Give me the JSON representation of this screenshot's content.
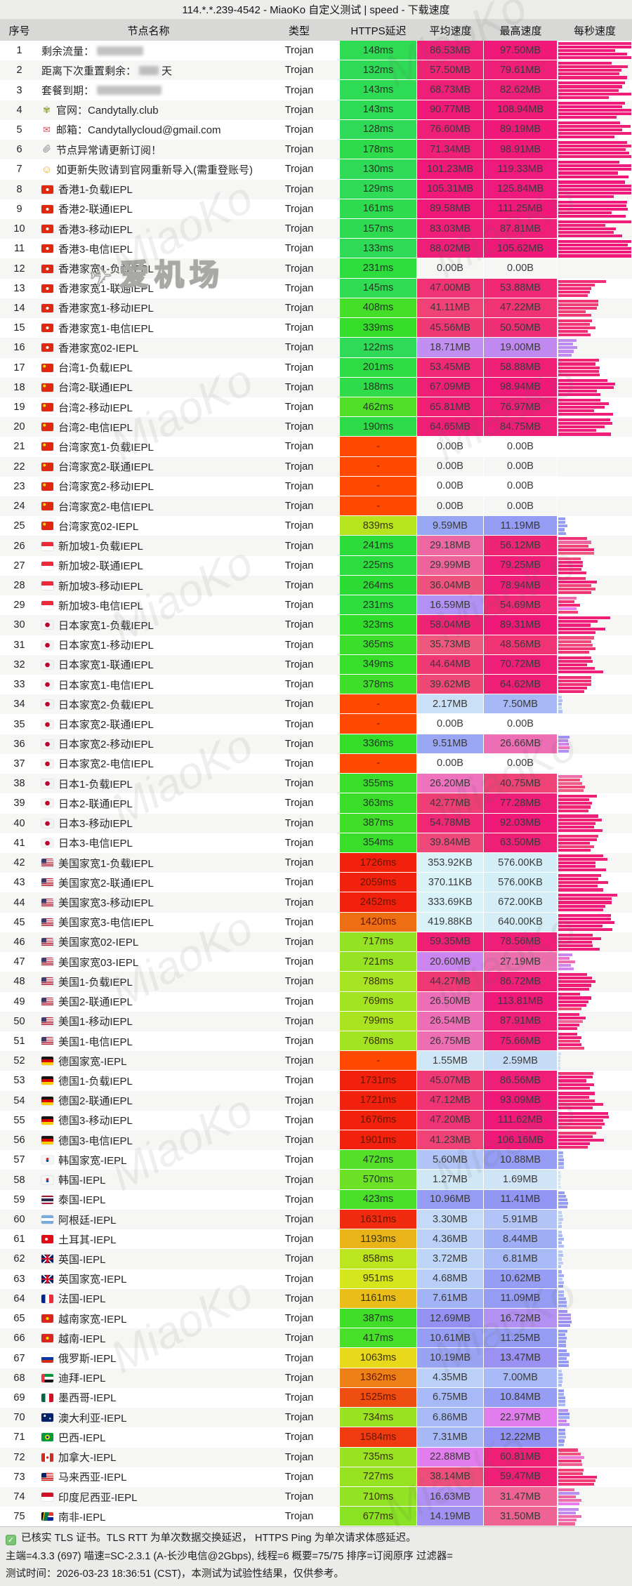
{
  "title": "114.*.*.239-4542 - MiaoKo 自定义测试 | speed - 下载速度",
  "columns": [
    "序号",
    "节点名称",
    "类型",
    "HTTPS延迟",
    "平均速度",
    "最高速度",
    "每秒速度"
  ],
  "icons": {
    "site": "✾",
    "mail": "✉",
    "smiley": "☺"
  },
  "watermark": {
    "repeat_text": "MiaoKo",
    "badge_text": "爱机场"
  },
  "footer": {
    "line1": "已核实 TLS 证书。TLS RTT 为单次数据交换延迟， HTTPS Ping 为单次请求体感延迟。",
    "line2": "主端=4.3.3 (697) 喵速=SC-2.3.1 (A-长沙电信@2Gbps), 线程=6 概要=75/75 排序=订阅原序 过滤器=",
    "line3": "测试时间：2026-03-23 18:36:51 (CST)，本测试为试验性结果，仅供参考。"
  },
  "rows": [
    {
      "n": 1,
      "t": "剩余流量：",
      "m": 66,
      "ty": "Trojan",
      "l": "148ms",
      "ms": 148,
      "a": "86.53MB",
      "av": 86.53,
      "x": "97.50MB",
      "xv": 97.5,
      "s": 0.93
    },
    {
      "n": 2,
      "t": "距离下次重置剩余：",
      "m": 28,
      "sfx": " 天",
      "ty": "Trojan",
      "l": "132ms",
      "ms": 132,
      "a": "57.50MB",
      "av": 57.5,
      "x": "79.61MB",
      "xv": 79.61,
      "s": 0.88
    },
    {
      "n": 3,
      "t": "套餐到期：",
      "m": 92,
      "ty": "Trojan",
      "l": "143ms",
      "ms": 143,
      "a": "68.73MB",
      "av": 68.73,
      "x": "82.62MB",
      "xv": 82.62,
      "s": 0.85
    },
    {
      "n": 4,
      "i": "site",
      "t": "官网：Candytally.club",
      "ty": "Trojan",
      "l": "143ms",
      "ms": 143,
      "a": "90.77MB",
      "av": 90.77,
      "x": "108.94MB",
      "xv": 108.94,
      "s": 0.93
    },
    {
      "n": 5,
      "i": "mail",
      "t": "邮箱：Candytallycloud@gmail.com",
      "ty": "Trojan",
      "l": "128ms",
      "ms": 128,
      "a": "76.60MB",
      "av": 76.6,
      "x": "89.19MB",
      "xv": 89.19,
      "s": 0.82
    },
    {
      "n": 6,
      "i": "clip",
      "t": "节点异常请更新订阅！",
      "ty": "Trojan",
      "l": "178ms",
      "ms": 178,
      "a": "71.34MB",
      "av": 71.34,
      "x": "98.91MB",
      "xv": 98.91,
      "s": 0.85
    },
    {
      "n": 7,
      "i": "smiley",
      "t": "如更新失败请到官网重新导入(需重登账号)",
      "ty": "Trojan",
      "l": "130ms",
      "ms": 130,
      "a": "101.23MB",
      "av": 101.23,
      "x": "119.33MB",
      "xv": 119.33,
      "s": 0.95
    },
    {
      "n": 8,
      "f": "hk",
      "t": "香港1-负载IEPL",
      "ty": "Trojan",
      "l": "129ms",
      "ms": 129,
      "a": "105.31MB",
      "av": 105.31,
      "x": "125.84MB",
      "xv": 125.84,
      "s": 0.95
    },
    {
      "n": 9,
      "f": "hk",
      "t": "香港2-联通IEPL",
      "ty": "Trojan",
      "l": "161ms",
      "ms": 161,
      "a": "89.58MB",
      "av": 89.58,
      "x": "111.25MB",
      "xv": 111.25,
      "s": 0.88
    },
    {
      "n": 10,
      "f": "hk",
      "t": "香港3-移动IEPL",
      "ty": "Trojan",
      "l": "157ms",
      "ms": 157,
      "a": "83.03MB",
      "av": 83.03,
      "x": "87.81MB",
      "xv": 87.81,
      "s": 0.8
    },
    {
      "n": 11,
      "f": "hk",
      "t": "香港3-电信IEPL",
      "ty": "Trojan",
      "l": "133ms",
      "ms": 133,
      "a": "88.02MB",
      "av": 88.02,
      "x": "105.62MB",
      "xv": 105.62,
      "s": 0.87
    },
    {
      "n": 12,
      "f": "hk",
      "t": "香港家宽1-负载IEPL",
      "ty": "Trojan",
      "l": "231ms",
      "ms": 231,
      "a": "0.00B",
      "av": 0,
      "x": "0.00B",
      "xv": 0,
      "s": 0
    },
    {
      "n": 13,
      "f": "hk",
      "t": "香港家宽1-联通IEPL",
      "ty": "Trojan",
      "l": "145ms",
      "ms": 145,
      "a": "47.00MB",
      "av": 47,
      "x": "53.88MB",
      "xv": 53.88,
      "s": 0.5
    },
    {
      "n": 14,
      "f": "hk",
      "t": "香港家宽1-移动IEPL",
      "ty": "Trojan",
      "l": "408ms",
      "ms": 408,
      "a": "41.11MB",
      "av": 41.11,
      "x": "47.22MB",
      "xv": 47.22,
      "s": 0.45
    },
    {
      "n": 15,
      "f": "hk",
      "t": "香港家宽1-电信IEPL",
      "ty": "Trojan",
      "l": "339ms",
      "ms": 339,
      "a": "45.56MB",
      "av": 45.56,
      "x": "50.50MB",
      "xv": 50.5,
      "s": 0.45
    },
    {
      "n": 16,
      "f": "hk",
      "t": "香港家宽02-IEPL",
      "ty": "Trojan",
      "l": "122ms",
      "ms": 122,
      "a": "18.71MB",
      "av": 18.71,
      "x": "19.00MB",
      "xv": 19,
      "s": 0.2
    },
    {
      "n": 17,
      "f": "cn",
      "t": "台湾1-负载IEPL",
      "ty": "Trojan",
      "l": "201ms",
      "ms": 201,
      "a": "53.45MB",
      "av": 53.45,
      "x": "58.88MB",
      "xv": 58.88,
      "s": 0.55
    },
    {
      "n": 18,
      "f": "cn",
      "t": "台湾2-联通IEPL",
      "ty": "Trojan",
      "l": "188ms",
      "ms": 188,
      "a": "67.09MB",
      "av": 67.09,
      "x": "98.94MB",
      "xv": 98.94,
      "s": 0.6
    },
    {
      "n": 19,
      "f": "cn",
      "t": "台湾2-移动IEPL",
      "ty": "Trojan",
      "l": "462ms",
      "ms": 462,
      "a": "65.81MB",
      "av": 65.81,
      "x": "76.97MB",
      "xv": 76.97,
      "s": 0.6
    },
    {
      "n": 20,
      "f": "cn",
      "t": "台湾2-电信IEPL",
      "ty": "Trojan",
      "l": "190ms",
      "ms": 190,
      "a": "64.65MB",
      "av": 64.65,
      "x": "84.75MB",
      "xv": 84.75,
      "s": 0.6
    },
    {
      "n": 21,
      "f": "cn",
      "t": "台湾家宽1-负载IEPL",
      "ty": "Trojan",
      "l": "-",
      "ms": null,
      "a": "0.00B",
      "av": 0,
      "x": "0.00B",
      "xv": 0,
      "s": 0
    },
    {
      "n": 22,
      "f": "cn",
      "t": "台湾家宽2-联通IEPL",
      "ty": "Trojan",
      "l": "-",
      "ms": null,
      "a": "0.00B",
      "av": 0,
      "x": "0.00B",
      "xv": 0,
      "s": 0
    },
    {
      "n": 23,
      "f": "cn",
      "t": "台湾家宽2-移动IEPL",
      "ty": "Trojan",
      "l": "-",
      "ms": null,
      "a": "0.00B",
      "av": 0,
      "x": "0.00B",
      "xv": 0,
      "s": 0
    },
    {
      "n": 24,
      "f": "cn",
      "t": "台湾家宽2-电信IEPL",
      "ty": "Trojan",
      "l": "-",
      "ms": null,
      "a": "0.00B",
      "av": 0,
      "x": "0.00B",
      "xv": 0,
      "s": 0
    },
    {
      "n": 25,
      "f": "cn",
      "t": "台湾家宽02-IEPL",
      "ty": "Trojan",
      "l": "839ms",
      "ms": 839,
      "a": "9.59MB",
      "av": 9.59,
      "x": "11.19MB",
      "xv": 11.19,
      "s": 0.1
    },
    {
      "n": 26,
      "f": "sg",
      "t": "新加坡1-负载IEPL",
      "ty": "Trojan",
      "l": "241ms",
      "ms": 241,
      "a": "29.18MB",
      "av": 29.18,
      "x": "56.12MB",
      "xv": 56.12,
      "s": 0.38
    },
    {
      "n": 27,
      "f": "sg",
      "t": "新加坡2-联通IEPL",
      "ty": "Trojan",
      "l": "225ms",
      "ms": 225,
      "a": "29.99MB",
      "av": 29.99,
      "x": "79.25MB",
      "xv": 79.25,
      "s": 0.38
    },
    {
      "n": 28,
      "f": "sg",
      "t": "新加坡3-移动IEPL",
      "ty": "Trojan",
      "l": "264ms",
      "ms": 264,
      "a": "36.04MB",
      "av": 36.04,
      "x": "78.94MB",
      "xv": 78.94,
      "s": 0.42
    },
    {
      "n": 29,
      "f": "sg",
      "t": "新加坡3-电信IEPL",
      "ty": "Trojan",
      "l": "231ms",
      "ms": 231,
      "a": "16.59MB",
      "av": 16.59,
      "x": "54.69MB",
      "xv": 54.69,
      "s": 0.25
    },
    {
      "n": 30,
      "f": "jp",
      "t": "日本家宽1-负载IEPL",
      "ty": "Trojan",
      "l": "323ms",
      "ms": 323,
      "a": "58.04MB",
      "av": 58.04,
      "x": "89.31MB",
      "xv": 89.31,
      "s": 0.55
    },
    {
      "n": 31,
      "f": "jp",
      "t": "日本家宽1-移动IEPL",
      "ty": "Trojan",
      "l": "365ms",
      "ms": 365,
      "a": "35.73MB",
      "av": 35.73,
      "x": "48.56MB",
      "xv": 48.56,
      "s": 0.42
    },
    {
      "n": 32,
      "f": "jp",
      "t": "日本家宽1-联通IEPL",
      "ty": "Trojan",
      "l": "349ms",
      "ms": 349,
      "a": "44.64MB",
      "av": 44.64,
      "x": "70.72MB",
      "xv": 70.72,
      "s": 0.48
    },
    {
      "n": 33,
      "f": "jp",
      "t": "日本家宽1-电信IEPL",
      "ty": "Trojan",
      "l": "378ms",
      "ms": 378,
      "a": "39.62MB",
      "av": 39.62,
      "x": "64.62MB",
      "xv": 64.62,
      "s": 0.45
    },
    {
      "n": 34,
      "f": "jp",
      "t": "日本家宽2-负载IEPL",
      "ty": "Trojan",
      "l": "-",
      "ms": null,
      "a": "2.17MB",
      "av": 2.17,
      "x": "7.50MB",
      "xv": 7.5,
      "s": 0.05
    },
    {
      "n": 35,
      "f": "jp",
      "t": "日本家宽2-联通IEPL",
      "ty": "Trojan",
      "l": "-",
      "ms": null,
      "a": "0.00B",
      "av": 0,
      "x": "0.00B",
      "xv": 0,
      "s": 0
    },
    {
      "n": 36,
      "f": "jp",
      "t": "日本家宽2-移动IEPL",
      "ty": "Trojan",
      "l": "336ms",
      "ms": 336,
      "a": "9.51MB",
      "av": 9.51,
      "x": "26.66MB",
      "xv": 26.66,
      "s": 0.12
    },
    {
      "n": 37,
      "f": "jp",
      "t": "日本家宽2-电信IEPL",
      "ty": "Trojan",
      "l": "-",
      "ms": null,
      "a": "0.00B",
      "av": 0,
      "x": "0.00B",
      "xv": 0,
      "s": 0
    },
    {
      "n": 38,
      "f": "jp",
      "t": "日本1-负载IEPL",
      "ty": "Trojan",
      "l": "355ms",
      "ms": 355,
      "a": "26.20MB",
      "av": 26.2,
      "x": "40.75MB",
      "xv": 40.75,
      "s": 0.32
    },
    {
      "n": 39,
      "f": "jp",
      "t": "日本2-联通IEPL",
      "ty": "Trojan",
      "l": "363ms",
      "ms": 363,
      "a": "42.77MB",
      "av": 42.77,
      "x": "77.28MB",
      "xv": 77.28,
      "s": 0.45
    },
    {
      "n": 40,
      "f": "jp",
      "t": "日本3-移动IEPL",
      "ty": "Trojan",
      "l": "387ms",
      "ms": 387,
      "a": "54.78MB",
      "av": 54.78,
      "x": "92.03MB",
      "xv": 92.03,
      "s": 0.5
    },
    {
      "n": 41,
      "f": "jp",
      "t": "日本3-电信IEPL",
      "ty": "Trojan",
      "l": "354ms",
      "ms": 354,
      "a": "39.84MB",
      "av": 39.84,
      "x": "63.50MB",
      "xv": 63.5,
      "s": 0.43
    },
    {
      "n": 42,
      "f": "us",
      "t": "美国家宽1-负载IEPL",
      "ty": "Trojan",
      "l": "1726ms",
      "ms": 1726,
      "a": "353.92KB",
      "av": 0.346,
      "x": "576.00KB",
      "xv": 0.563,
      "s": 0.6
    },
    {
      "n": 43,
      "f": "us",
      "t": "美国家宽2-联通IEPL",
      "ty": "Trojan",
      "l": "2059ms",
      "ms": 2059,
      "a": "370.11KB",
      "av": 0.361,
      "x": "576.00KB",
      "xv": 0.563,
      "s": 0.65
    },
    {
      "n": 44,
      "f": "us",
      "t": "美国家宽3-移动IEPL",
      "ty": "Trojan",
      "l": "2452ms",
      "ms": 2452,
      "a": "333.69KB",
      "av": 0.326,
      "x": "672.00KB",
      "xv": 0.656,
      "s": 0.7
    },
    {
      "n": 45,
      "f": "us",
      "t": "美国家宽3-电信IEPL",
      "ty": "Trojan",
      "l": "1420ms",
      "ms": 1420,
      "a": "419.88KB",
      "av": 0.41,
      "x": "640.00KB",
      "xv": 0.625,
      "s": 0.6
    },
    {
      "n": 46,
      "f": "us",
      "t": "美国家宽02-IEPL",
      "ty": "Trojan",
      "l": "717ms",
      "ms": 717,
      "a": "59.35MB",
      "av": 59.35,
      "x": "78.56MB",
      "xv": 78.56,
      "s": 0.5
    },
    {
      "n": 47,
      "f": "us",
      "t": "美国家宽03-IEPL",
      "ty": "Trojan",
      "l": "721ms",
      "ms": 721,
      "a": "20.60MB",
      "av": 20.6,
      "x": "27.19MB",
      "xv": 27.19,
      "s": 0.18
    },
    {
      "n": 48,
      "f": "us",
      "t": "美国1-负载IEPL",
      "ty": "Trojan",
      "l": "788ms",
      "ms": 788,
      "a": "44.27MB",
      "av": 44.27,
      "x": "86.72MB",
      "xv": 86.72,
      "s": 0.45
    },
    {
      "n": 49,
      "f": "us",
      "t": "美国2-联通IEPL",
      "ty": "Trojan",
      "l": "769ms",
      "ms": 769,
      "a": "26.50MB",
      "av": 26.5,
      "x": "113.81MB",
      "xv": 113.81,
      "s": 0.35
    },
    {
      "n": 50,
      "f": "us",
      "t": "美国1-移动IEPL",
      "ty": "Trojan",
      "l": "799ms",
      "ms": 799,
      "a": "26.54MB",
      "av": 26.54,
      "x": "87.91MB",
      "xv": 87.91,
      "s": 0.3
    },
    {
      "n": 51,
      "f": "us",
      "t": "美国1-电信IEPL",
      "ty": "Trojan",
      "l": "768ms",
      "ms": 768,
      "a": "26.75MB",
      "av": 26.75,
      "x": "75.66MB",
      "xv": 75.66,
      "s": 0.3
    },
    {
      "n": 52,
      "f": "de",
      "t": "德国家宽-IEPL",
      "ty": "Trojan",
      "l": "-",
      "ms": null,
      "a": "1.55MB",
      "av": 1.55,
      "x": "2.59MB",
      "xv": 2.59,
      "s": 0.03
    },
    {
      "n": 53,
      "f": "de",
      "t": "德国1-负载IEPL",
      "ty": "Trojan",
      "l": "1731ms",
      "ms": 1731,
      "a": "45.07MB",
      "av": 45.07,
      "x": "86.56MB",
      "xv": 86.56,
      "s": 0.45
    },
    {
      "n": 54,
      "f": "de",
      "t": "德国2-联通IEPL",
      "ty": "Trojan",
      "l": "1721ms",
      "ms": 1721,
      "a": "47.12MB",
      "av": 47.12,
      "x": "93.09MB",
      "xv": 93.09,
      "s": 0.5
    },
    {
      "n": 55,
      "f": "de",
      "t": "德国3-移动IEPL",
      "ty": "Trojan",
      "l": "1676ms",
      "ms": 1676,
      "a": "47.20MB",
      "av": 47.2,
      "x": "111.62MB",
      "xv": 111.62,
      "s": 0.55
    },
    {
      "n": 56,
      "f": "de",
      "t": "德国3-电信IEPL",
      "ty": "Trojan",
      "l": "1901ms",
      "ms": 1901,
      "a": "41.23MB",
      "av": 41.23,
      "x": "106.16MB",
      "xv": 106.16,
      "s": 0.5
    },
    {
      "n": 57,
      "f": "kr",
      "t": "韩国家宽-IEPL",
      "ty": "Trojan",
      "l": "472ms",
      "ms": 472,
      "a": "5.60MB",
      "av": 5.6,
      "x": "10.88MB",
      "xv": 10.88,
      "s": 0.07
    },
    {
      "n": 58,
      "f": "kr",
      "t": "韩国-IEPL",
      "ty": "Trojan",
      "l": "570ms",
      "ms": 570,
      "a": "1.27MB",
      "av": 1.27,
      "x": "1.69MB",
      "xv": 1.69,
      "s": 0.03
    },
    {
      "n": 59,
      "f": "th",
      "t": "泰国-IEPL",
      "ty": "Trojan",
      "l": "423ms",
      "ms": 423,
      "a": "10.96MB",
      "av": 10.96,
      "x": "11.41MB",
      "xv": 11.41,
      "s": 0.1
    },
    {
      "n": 60,
      "f": "ar",
      "t": "阿根廷-IEPL",
      "ty": "Trojan",
      "l": "1631ms",
      "ms": 1631,
      "a": "3.30MB",
      "av": 3.3,
      "x": "5.91MB",
      "xv": 5.91,
      "s": 0.05
    },
    {
      "n": 61,
      "f": "tr",
      "t": "土耳其-IEPL",
      "ty": "Trojan",
      "l": "1193ms",
      "ms": 1193,
      "a": "4.36MB",
      "av": 4.36,
      "x": "8.44MB",
      "xv": 8.44,
      "s": 0.06
    },
    {
      "n": 62,
      "f": "gb",
      "t": "英国-IEPL",
      "ty": "Trojan",
      "l": "858ms",
      "ms": 858,
      "a": "3.72MB",
      "av": 3.72,
      "x": "6.81MB",
      "xv": 6.81,
      "s": 0.05
    },
    {
      "n": 63,
      "f": "gb",
      "t": "英国家宽-IEPL",
      "ty": "Trojan",
      "l": "951ms",
      "ms": 951,
      "a": "4.68MB",
      "av": 4.68,
      "x": "10.62MB",
      "xv": 10.62,
      "s": 0.06
    },
    {
      "n": 64,
      "f": "fr",
      "t": "法国-IEPL",
      "ty": "Trojan",
      "l": "1161ms",
      "ms": 1161,
      "a": "7.61MB",
      "av": 7.61,
      "x": "11.09MB",
      "xv": 11.09,
      "s": 0.09
    },
    {
      "n": 65,
      "f": "vn",
      "t": "越南家宽-IEPL",
      "ty": "Trojan",
      "l": "387ms",
      "ms": 387,
      "a": "12.69MB",
      "av": 12.69,
      "x": "16.72MB",
      "xv": 16.72,
      "s": 0.15
    },
    {
      "n": 66,
      "f": "vn",
      "t": "越南-IEPL",
      "ty": "Trojan",
      "l": "417ms",
      "ms": 417,
      "a": "10.61MB",
      "av": 10.61,
      "x": "11.25MB",
      "xv": 11.25,
      "s": 0.11
    },
    {
      "n": 67,
      "f": "ru",
      "t": "俄罗斯-IEPL",
      "ty": "Trojan",
      "l": "1063ms",
      "ms": 1063,
      "a": "10.19MB",
      "av": 10.19,
      "x": "13.47MB",
      "xv": 13.47,
      "s": 0.12
    },
    {
      "n": 68,
      "f": "ae",
      "t": "迪拜-IEPL",
      "ty": "Trojan",
      "l": "1362ms",
      "ms": 1362,
      "a": "4.35MB",
      "av": 4.35,
      "x": "7.00MB",
      "xv": 7,
      "s": 0.05
    },
    {
      "n": 69,
      "f": "mx",
      "t": "墨西哥-IEPL",
      "ty": "Trojan",
      "l": "1525ms",
      "ms": 1525,
      "a": "6.75MB",
      "av": 6.75,
      "x": "10.84MB",
      "xv": 10.84,
      "s": 0.08
    },
    {
      "n": 70,
      "f": "au",
      "t": "澳大利亚-IEPL",
      "ty": "Trojan",
      "l": "734ms",
      "ms": 734,
      "a": "6.86MB",
      "av": 6.86,
      "x": "22.97MB",
      "xv": 22.97,
      "s": 0.14
    },
    {
      "n": 71,
      "f": "br",
      "t": "巴西-IEPL",
      "ty": "Trojan",
      "l": "1584ms",
      "ms": 1584,
      "a": "7.31MB",
      "av": 7.31,
      "x": "12.22MB",
      "xv": 12.22,
      "s": 0.09
    },
    {
      "n": 72,
      "f": "ca",
      "t": "加拿大-IEPL",
      "ty": "Trojan",
      "l": "735ms",
      "ms": 735,
      "a": "22.88MB",
      "av": 22.88,
      "x": "60.81MB",
      "xv": 60.81,
      "s": 0.3
    },
    {
      "n": 73,
      "f": "my",
      "t": "马来西亚-IEPL",
      "ty": "Trojan",
      "l": "727ms",
      "ms": 727,
      "a": "38.14MB",
      "av": 38.14,
      "x": "59.47MB",
      "xv": 59.47,
      "s": 0.42
    },
    {
      "n": 74,
      "f": "id",
      "t": "印度尼西亚-IEPL",
      "ty": "Trojan",
      "l": "710ms",
      "ms": 710,
      "a": "16.63MB",
      "av": 16.63,
      "x": "31.47MB",
      "xv": 31.47,
      "s": 0.25
    },
    {
      "n": 75,
      "f": "za",
      "t": "南非-IEPL",
      "ty": "Trojan",
      "l": "677ms",
      "ms": 677,
      "a": "14.19MB",
      "av": 14.19,
      "x": "31.50MB",
      "xv": 31.5,
      "s": 0.25
    }
  ]
}
